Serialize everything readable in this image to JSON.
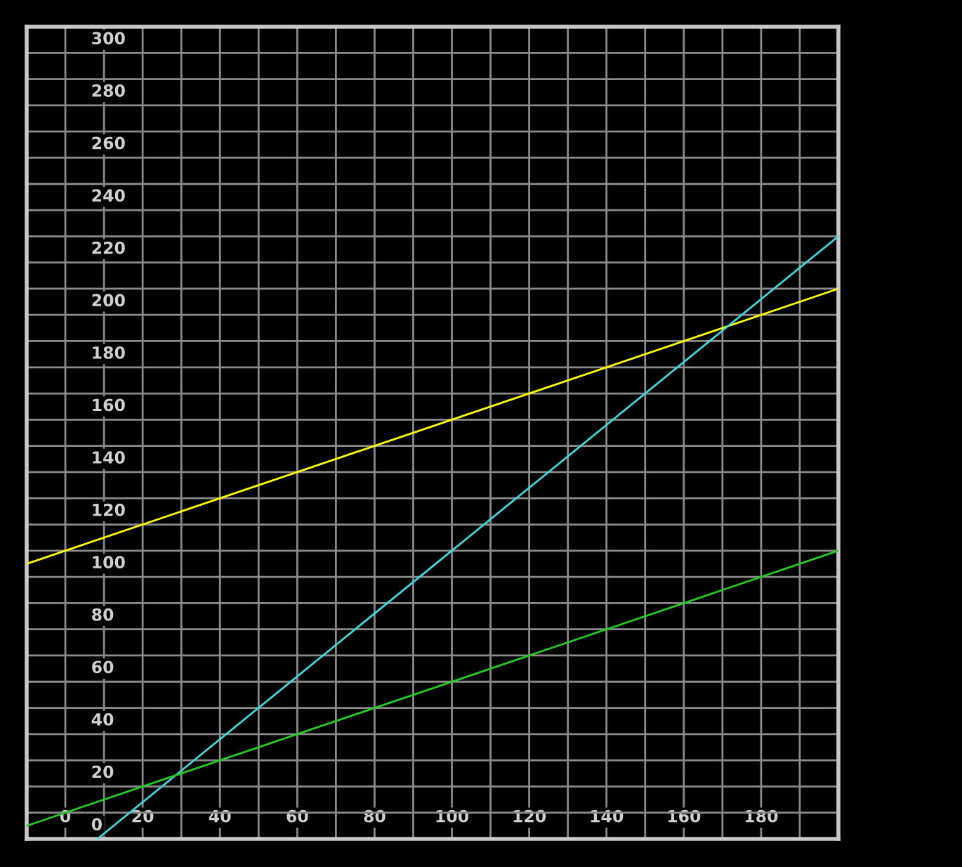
{
  "chart_data": {
    "type": "line",
    "series": [
      {
        "color": "#ffff00",
        "x": [
          -10,
          200
        ],
        "values": [
          95,
          200
        ]
      },
      {
        "color": "#40d8e0",
        "x": [
          8.3,
          200
        ],
        "values": [
          -10,
          220
        ]
      },
      {
        "color": "#22cc22",
        "x": [
          -10,
          200
        ],
        "values": [
          -5,
          100
        ]
      }
    ],
    "xlim": [
      -10,
      200
    ],
    "xticks": [
      {
        "value": -10,
        "label": null
      },
      0,
      {
        "value": 10,
        "label": null
      },
      20,
      {
        "value": 30,
        "label": null
      },
      40,
      {
        "value": 50,
        "label": null
      },
      60,
      {
        "value": 70,
        "label": null
      },
      80,
      {
        "value": 90,
        "label": null
      },
      100,
      {
        "value": 110,
        "label": null
      },
      120,
      {
        "value": 130,
        "label": null
      },
      140,
      {
        "value": 150,
        "label": null
      },
      160,
      {
        "value": 170,
        "label": null
      },
      180,
      {
        "value": 190,
        "label": null
      }
    ],
    "ylim": [
      -10,
      300
    ],
    "yticks": [
      {
        "value": -10,
        "label": null
      },
      0,
      {
        "value": 10,
        "label": null
      },
      20,
      {
        "value": 30,
        "label": null
      },
      40,
      {
        "value": 50,
        "label": null
      },
      60,
      {
        "value": 70,
        "label": null
      },
      80,
      {
        "value": 90,
        "label": null
      },
      100,
      {
        "value": 110,
        "label": null
      },
      120,
      {
        "value": 130,
        "label": null
      },
      140,
      {
        "value": 150,
        "label": null
      },
      160,
      {
        "value": 170,
        "label": null
      },
      180,
      {
        "value": 190,
        "label": null
      },
      200,
      {
        "value": 210,
        "label": null
      },
      220,
      {
        "value": 230,
        "label": null
      },
      240,
      {
        "value": 250,
        "label": null
      },
      260,
      {
        "value": 270,
        "label": null
      },
      280,
      {
        "value": 290,
        "label": null
      },
      300
    ],
    "grid": true,
    "marker": "none",
    "line_style": "solid"
  }
}
